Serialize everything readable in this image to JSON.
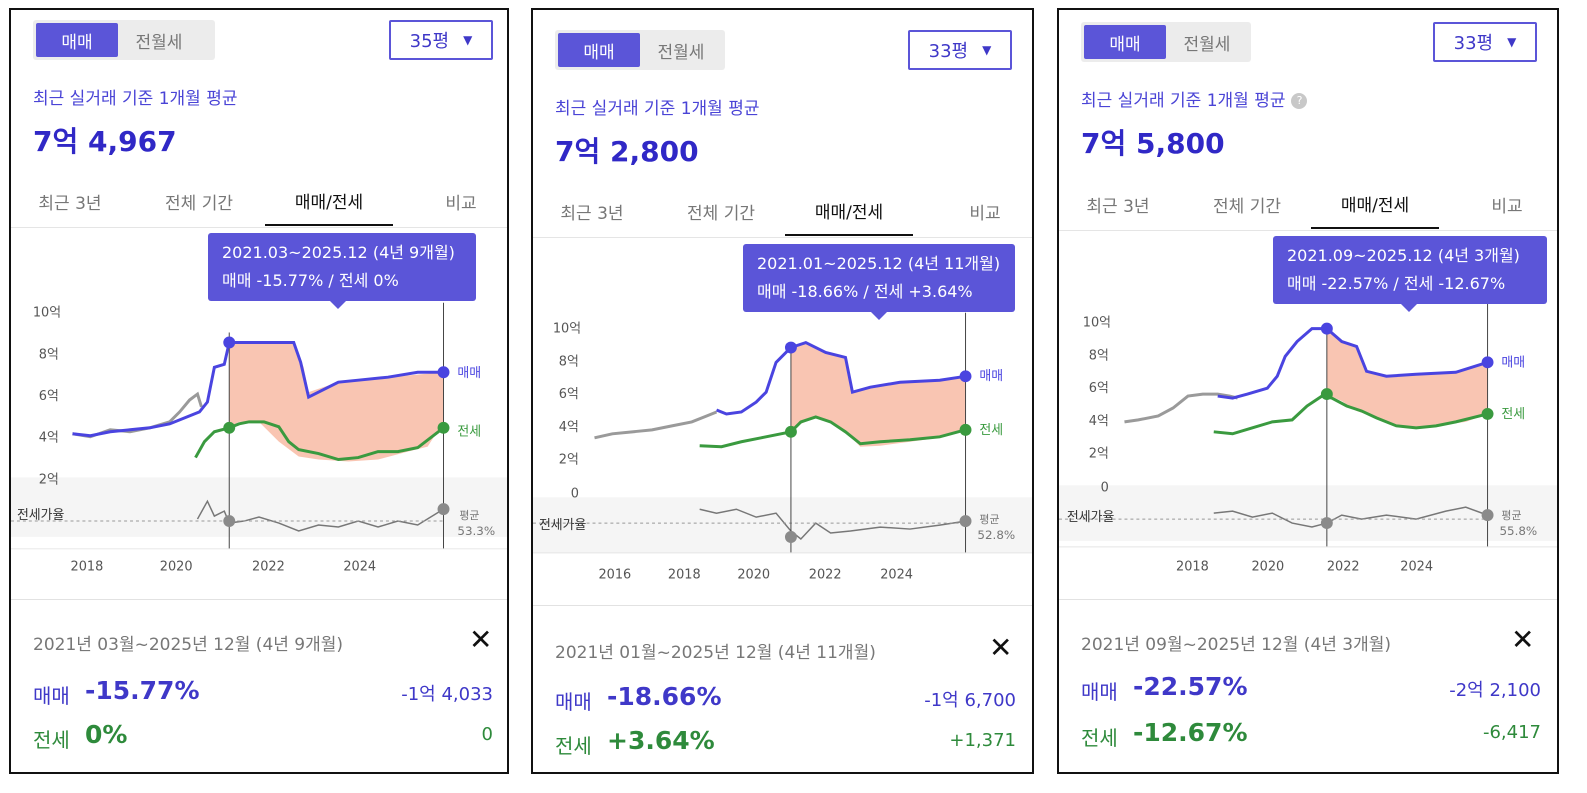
{
  "colors": {
    "accent": "#5b55d8",
    "buy": "#4a44e0",
    "jeonse": "#3a9a3f",
    "gap_fill": "#f8bba4",
    "gray_line": "#9a9a9a"
  },
  "panels": [
    {
      "tabs_top": {
        "option1": "매매",
        "option2": "전월세",
        "size": "35평"
      },
      "subtitle": "최근 실거래 기준 1개월 평균",
      "price": "7억 4,967",
      "tabs": [
        "최근 3년",
        "전체 기간",
        "매매/전세",
        "비교"
      ],
      "tooltip": {
        "line1": "2021.03~2025.12 (4년 9개월)",
        "line2": "매매 -15.77%  /  전세 0%"
      },
      "y_ticks": [
        "10억",
        "8억",
        "6억",
        "4억",
        "2억"
      ],
      "ratio_label": "전세가율",
      "avg_label": "평균",
      "avg_value": "53.3%",
      "x_ticks": [
        "2018",
        "2020",
        "2022",
        "2024"
      ],
      "series_labels": {
        "buy": "매매",
        "jeonse": "전세"
      },
      "summary": {
        "period": "2021년 03월~2025년 12월 (4년 9개월)",
        "buy_label": "매매",
        "buy_pct": "-15.77%",
        "buy_amt": "-1억 4,033",
        "jeon_label": "전세",
        "jeon_pct": "0%",
        "jeon_amt": "0"
      }
    },
    {
      "tabs_top": {
        "option1": "매매",
        "option2": "전월세",
        "size": "33평"
      },
      "subtitle": "최근 실거래 기준 1개월 평균",
      "price": "7억 2,800",
      "tabs": [
        "최근 3년",
        "전체 기간",
        "매매/전세",
        "비교"
      ],
      "tooltip": {
        "line1": "2021.01~2025.12 (4년 11개월)",
        "line2": "매매 -18.66%  /  전세 +3.64%"
      },
      "y_ticks": [
        "10억",
        "8억",
        "6억",
        "4억",
        "2억",
        "0"
      ],
      "ratio_label": "전세가율",
      "avg_label": "평균",
      "avg_value": "52.8%",
      "x_ticks": [
        "2016",
        "2018",
        "2020",
        "2022",
        "2024"
      ],
      "series_labels": {
        "buy": "매매",
        "jeonse": "전세"
      },
      "summary": {
        "period": "2021년 01월~2025년 12월 (4년 11개월)",
        "buy_label": "매매",
        "buy_pct": "-18.66%",
        "buy_amt": "-1억 6,700",
        "jeon_label": "전세",
        "jeon_pct": "+3.64%",
        "jeon_amt": "+1,371"
      }
    },
    {
      "tabs_top": {
        "option1": "매매",
        "option2": "전월세",
        "size": "33평"
      },
      "subtitle": "최근 실거래 기준 1개월 평균",
      "price": "7억 5,800",
      "tabs": [
        "최근 3년",
        "전체 기간",
        "매매/전세",
        "비교"
      ],
      "tooltip": {
        "line1": "2021.09~2025.12 (4년 3개월)",
        "line2": "매매 -22.57%  /  전세 -12.67%"
      },
      "y_ticks": [
        "10억",
        "8억",
        "6억",
        "4억",
        "2억",
        "0"
      ],
      "ratio_label": "전세가율",
      "avg_label": "평균",
      "avg_value": "55.8%",
      "x_ticks": [
        "2018",
        "2020",
        "2022",
        "2024"
      ],
      "series_labels": {
        "buy": "매매",
        "jeonse": "전세"
      },
      "summary": {
        "period": "2021년 09월~2025년 12월 (4년 3개월)",
        "buy_label": "매매",
        "buy_pct": "-22.57%",
        "buy_amt": "-2억 2,100",
        "jeon_label": "전세",
        "jeon_pct": "-12.67%",
        "jeon_amt": "-6,417"
      }
    }
  ]
}
